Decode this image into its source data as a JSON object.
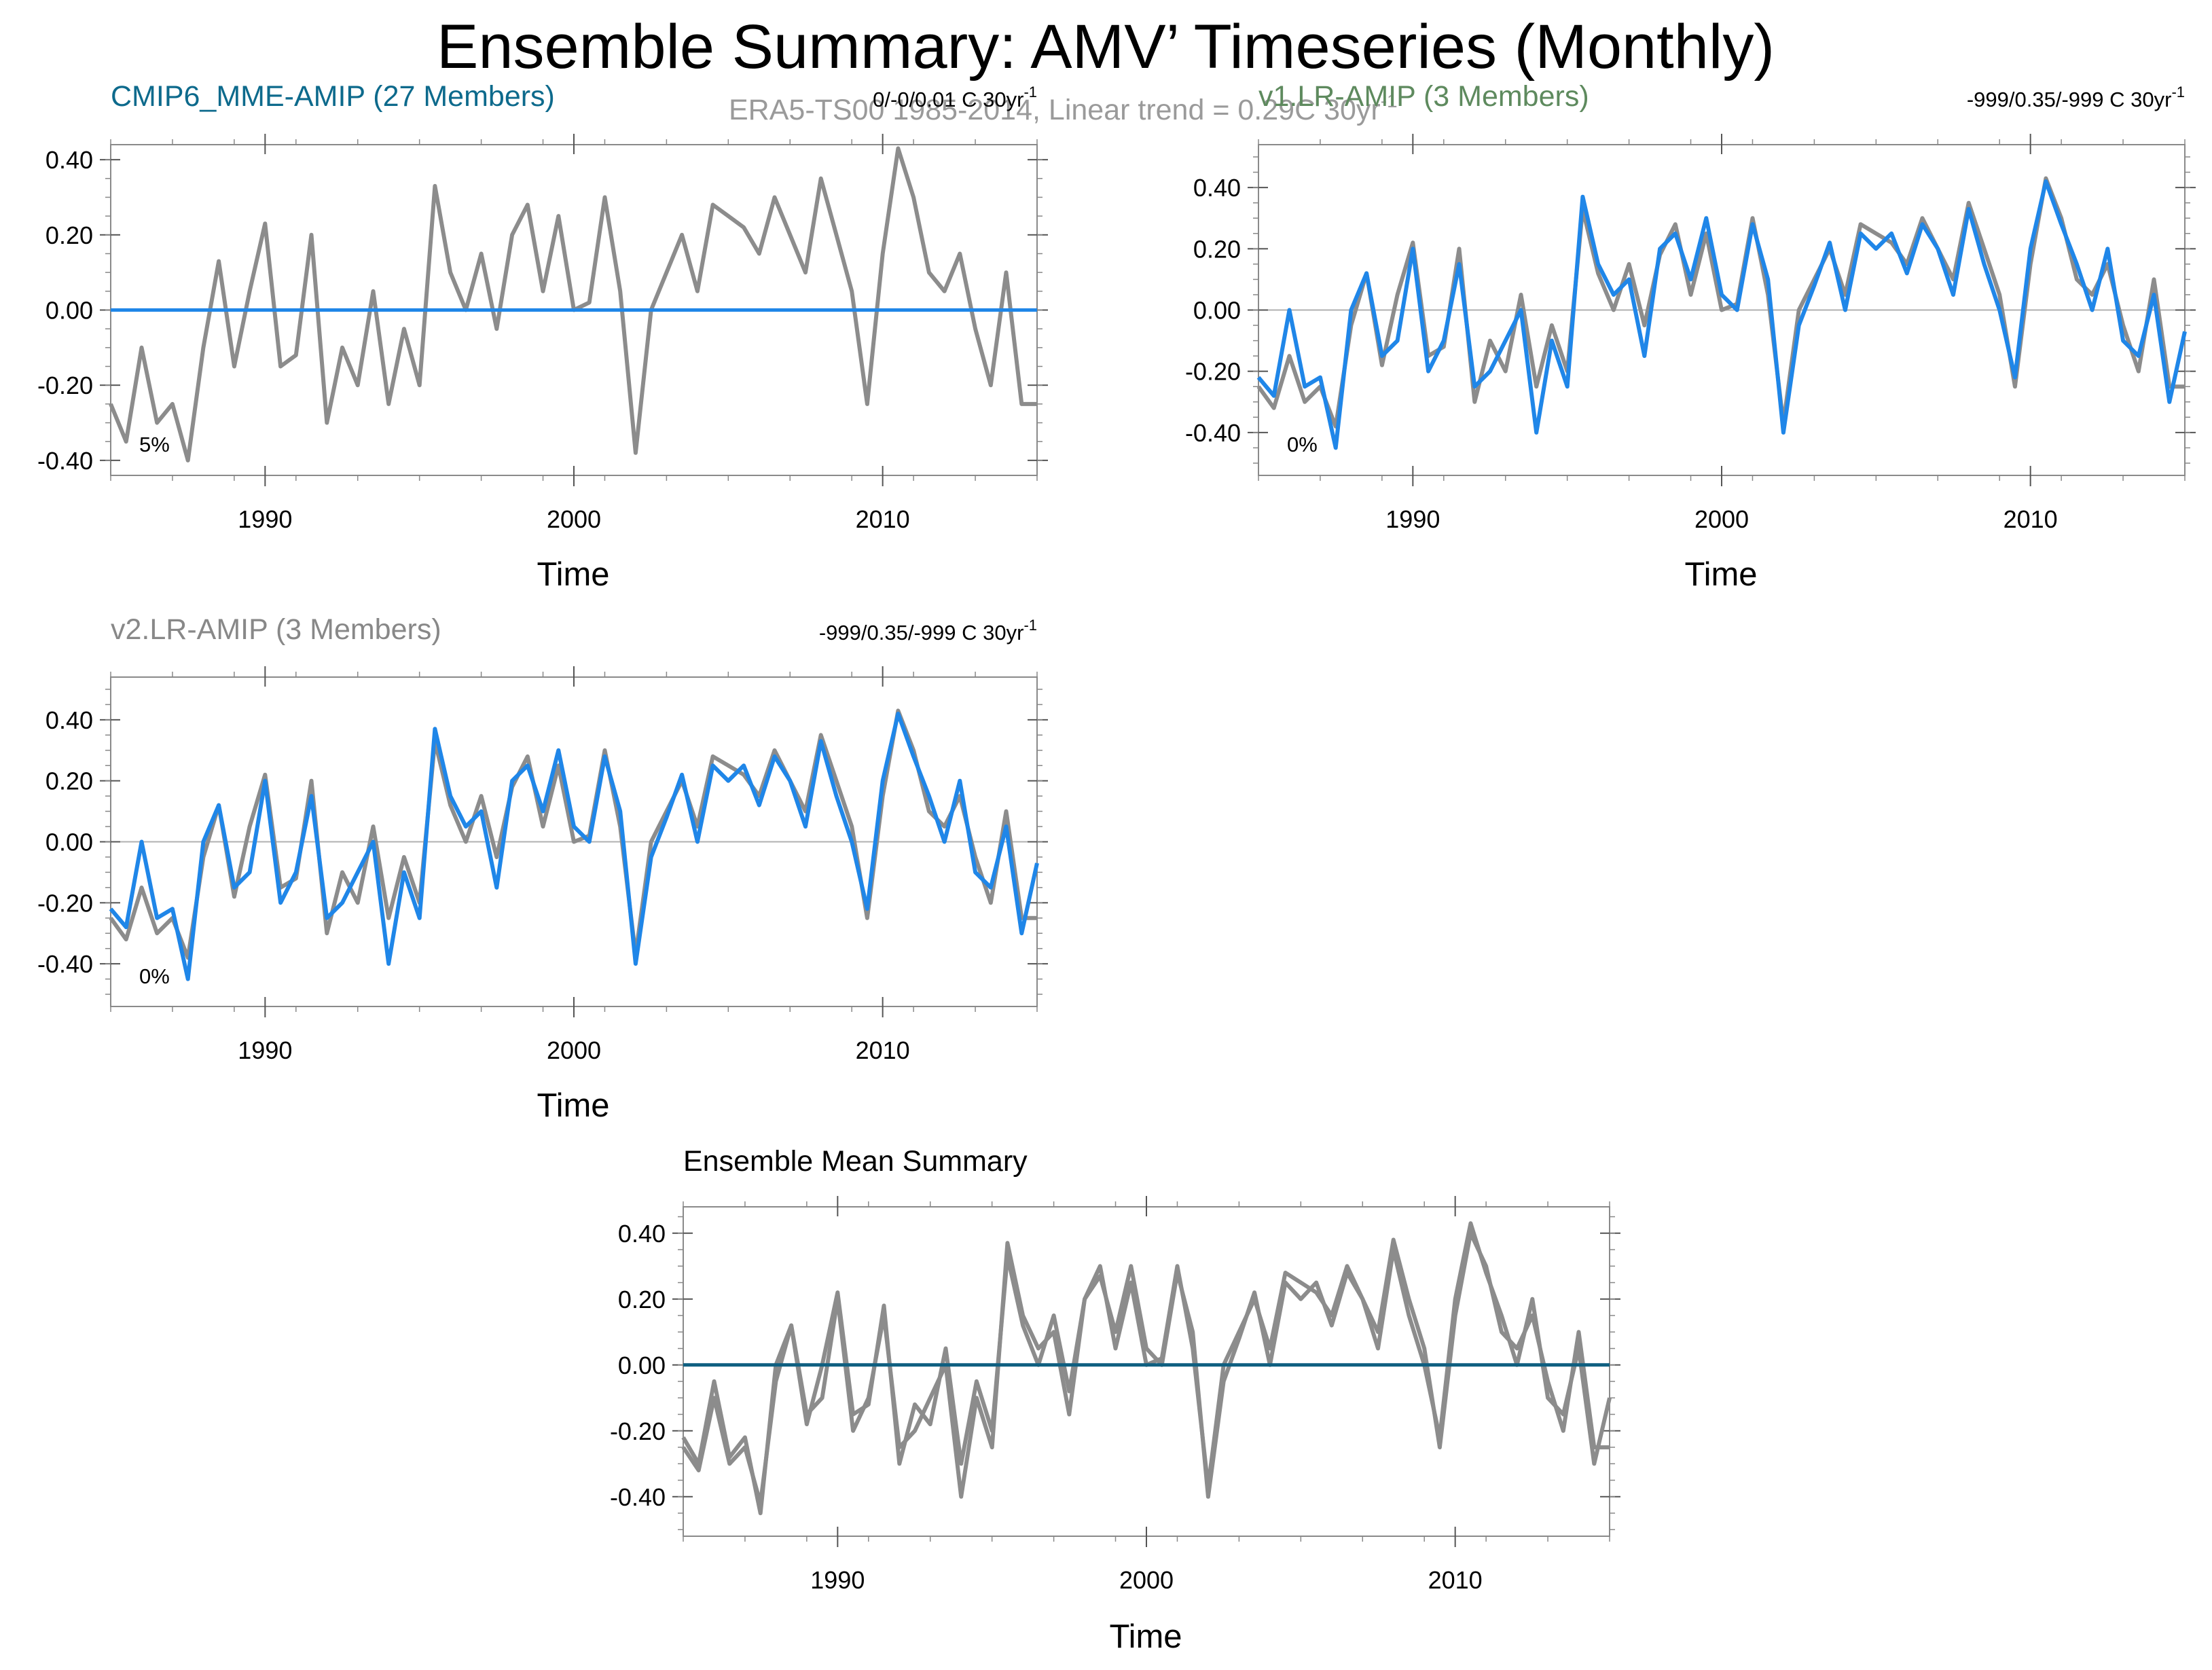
{
  "page": {
    "title": "Ensemble Summary: AMV’ Timeseries (Monthly)",
    "era_label": "ERA5-TS00 1985-2014, Linear trend = 0.29C 30yr",
    "era_label_sup": "-1"
  },
  "colors": {
    "obs": "#8c8c8c",
    "blue": "#1f86e8",
    "mme_mean": "#0e5f80",
    "frame": "#8a8a8a",
    "zero_line": "#b0b0b0",
    "cmip_title": "#0d6a8c",
    "v1_title": "#5e8a5e",
    "v2_title": "#888888"
  },
  "panels": [
    {
      "id": "cmip6",
      "title": "CMIP6_MME-AMIP (27 Members)",
      "trend": "0/-0/0.01 C 30yr",
      "trend_sup": "-1",
      "pct": "5%",
      "xlabel": "Time"
    },
    {
      "id": "v1",
      "title": "v1.LR-AMIP (3 Members)",
      "trend": "-999/0.35/-999 C 30yr",
      "trend_sup": "-1",
      "pct": "0%",
      "xlabel": "Time"
    },
    {
      "id": "v2",
      "title": "v2.LR-AMIP (3 Members)",
      "trend": "-999/0.35/-999 C 30yr",
      "trend_sup": "-1",
      "pct": "0%",
      "xlabel": "Time"
    },
    {
      "id": "summary",
      "title": "Ensemble Mean Summary",
      "xlabel": "Time"
    }
  ],
  "chart_data": [
    {
      "type": "line",
      "panel": "cmip6",
      "title": "CMIP6_MME-AMIP (27 Members)",
      "xlabel": "Time",
      "ylabel": "",
      "xlim": [
        1985,
        2015
      ],
      "ylim": [
        -0.44,
        0.44
      ],
      "xticks": [
        "1990",
        "2000",
        "2010"
      ],
      "yticks": [
        "0.40",
        "0.20",
        "0.00",
        "-0.20",
        "-0.40"
      ],
      "x": [
        1985,
        1985.5,
        1986,
        1986.5,
        1987,
        1987.5,
        1988,
        1988.5,
        1989,
        1989.5,
        1990,
        1990.5,
        1991,
        1991.5,
        1992,
        1992.5,
        1993,
        1993.5,
        1994,
        1994.5,
        1995,
        1995.5,
        1996,
        1996.5,
        1997,
        1997.5,
        1998,
        1998.5,
        1999,
        1999.5,
        2000,
        2000.5,
        2001,
        2001.5,
        2002,
        2002.5,
        2003,
        2003.5,
        2004,
        2004.5,
        2005,
        2005.5,
        2006,
        2006.5,
        2007,
        2007.5,
        2008,
        2008.5,
        2009,
        2009.5,
        2010,
        2010.5,
        2011,
        2011.5,
        2012,
        2012.5,
        2013,
        2013.5,
        2014,
        2014.5,
        2015
      ],
      "series": [
        {
          "name": "ERA5-TS00 observed",
          "values": [
            -0.25,
            -0.35,
            -0.1,
            -0.3,
            -0.25,
            -0.4,
            -0.1,
            0.13,
            -0.15,
            0.05,
            0.23,
            -0.15,
            -0.12,
            0.2,
            -0.3,
            -0.1,
            -0.2,
            0.05,
            -0.25,
            -0.05,
            -0.2,
            0.33,
            0.1,
            0.0,
            0.15,
            -0.05,
            0.2,
            0.28,
            0.05,
            0.25,
            0.0,
            0.02,
            0.3,
            0.05,
            -0.38,
            0.0,
            0.1,
            0.2,
            0.05,
            0.28,
            0.25,
            0.22,
            0.15,
            0.3,
            0.2,
            0.1,
            0.35,
            0.2,
            0.05,
            -0.25,
            0.15,
            0.43,
            0.3,
            0.1,
            0.05,
            0.15,
            -0.05,
            -0.2,
            0.1,
            -0.25,
            -0.25
          ]
        },
        {
          "name": "CMIP6 MME mean",
          "values": [
            0,
            0,
            0,
            0,
            0,
            0,
            0,
            0,
            0,
            0,
            0,
            0,
            0,
            0,
            0,
            0,
            0,
            0,
            0,
            0,
            0,
            0,
            0,
            0,
            0,
            0,
            0,
            0,
            0,
            0,
            0,
            0,
            0,
            0,
            0,
            0,
            0,
            0,
            0,
            0,
            0,
            0,
            0,
            0,
            0,
            0,
            0,
            0,
            0,
            0,
            0,
            0,
            0,
            0,
            0,
            0,
            0,
            0,
            0,
            0,
            0
          ]
        }
      ]
    },
    {
      "type": "line",
      "panel": "v1",
      "title": "v1.LR-AMIP (3 Members)",
      "xlabel": "Time",
      "ylabel": "",
      "xlim": [
        1985,
        2015
      ],
      "ylim": [
        -0.54,
        0.54
      ],
      "xticks": [
        "1990",
        "2000",
        "2010"
      ],
      "yticks": [
        "0.40",
        "0.20",
        "0.00",
        "-0.20",
        "-0.40"
      ],
      "x": [
        1985,
        1985.5,
        1986,
        1986.5,
        1987,
        1987.5,
        1988,
        1988.5,
        1989,
        1989.5,
        1990,
        1990.5,
        1991,
        1991.5,
        1992,
        1992.5,
        1993,
        1993.5,
        1994,
        1994.5,
        1995,
        1995.5,
        1996,
        1996.5,
        1997,
        1997.5,
        1998,
        1998.5,
        1999,
        1999.5,
        2000,
        2000.5,
        2001,
        2001.5,
        2002,
        2002.5,
        2003,
        2003.5,
        2004,
        2004.5,
        2005,
        2005.5,
        2006,
        2006.5,
        2007,
        2007.5,
        2008,
        2008.5,
        2009,
        2009.5,
        2010,
        2010.5,
        2011,
        2011.5,
        2012,
        2012.5,
        2013,
        2013.5,
        2014,
        2014.5,
        2015
      ],
      "series": [
        {
          "name": "ERA5-TS00 observed",
          "values": [
            -0.25,
            -0.32,
            -0.15,
            -0.3,
            -0.25,
            -0.38,
            -0.05,
            0.12,
            -0.18,
            0.05,
            0.22,
            -0.15,
            -0.12,
            0.2,
            -0.3,
            -0.1,
            -0.2,
            0.05,
            -0.25,
            -0.05,
            -0.2,
            0.33,
            0.12,
            0.0,
            0.15,
            -0.05,
            0.18,
            0.28,
            0.05,
            0.25,
            0.0,
            0.02,
            0.3,
            0.05,
            -0.37,
            0.0,
            0.1,
            0.2,
            0.05,
            0.28,
            0.25,
            0.22,
            0.15,
            0.3,
            0.2,
            0.1,
            0.35,
            0.2,
            0.05,
            -0.25,
            0.15,
            0.43,
            0.3,
            0.1,
            0.05,
            0.15,
            -0.05,
            -0.2,
            0.1,
            -0.25,
            -0.25
          ]
        },
        {
          "name": "v1.LR-AMIP ensemble mean",
          "values": [
            -0.22,
            -0.28,
            0.0,
            -0.25,
            -0.22,
            -0.45,
            0.0,
            0.12,
            -0.15,
            -0.1,
            0.2,
            -0.2,
            -0.1,
            0.15,
            -0.25,
            -0.2,
            -0.1,
            0.0,
            -0.4,
            -0.1,
            -0.25,
            0.37,
            0.15,
            0.05,
            0.1,
            -0.15,
            0.2,
            0.25,
            0.1,
            0.3,
            0.05,
            0.0,
            0.28,
            0.1,
            -0.4,
            -0.05,
            0.08,
            0.22,
            0.0,
            0.25,
            0.2,
            0.25,
            0.12,
            0.28,
            0.2,
            0.05,
            0.33,
            0.15,
            0.0,
            -0.22,
            0.2,
            0.42,
            0.28,
            0.15,
            0.0,
            0.2,
            -0.1,
            -0.15,
            0.05,
            -0.3,
            -0.07
          ]
        }
      ]
    },
    {
      "type": "line",
      "panel": "v2",
      "title": "v2.LR-AMIP (3 Members)",
      "xlabel": "Time",
      "ylabel": "",
      "xlim": [
        1985,
        2015
      ],
      "ylim": [
        -0.54,
        0.54
      ],
      "xticks": [
        "1990",
        "2000",
        "2010"
      ],
      "yticks": [
        "0.40",
        "0.20",
        "0.00",
        "-0.20",
        "-0.40"
      ],
      "x": [
        1985,
        1985.5,
        1986,
        1986.5,
        1987,
        1987.5,
        1988,
        1988.5,
        1989,
        1989.5,
        1990,
        1990.5,
        1991,
        1991.5,
        1992,
        1992.5,
        1993,
        1993.5,
        1994,
        1994.5,
        1995,
        1995.5,
        1996,
        1996.5,
        1997,
        1997.5,
        1998,
        1998.5,
        1999,
        1999.5,
        2000,
        2000.5,
        2001,
        2001.5,
        2002,
        2002.5,
        2003,
        2003.5,
        2004,
        2004.5,
        2005,
        2005.5,
        2006,
        2006.5,
        2007,
        2007.5,
        2008,
        2008.5,
        2009,
        2009.5,
        2010,
        2010.5,
        2011,
        2011.5,
        2012,
        2012.5,
        2013,
        2013.5,
        2014,
        2014.5,
        2015
      ],
      "series": [
        {
          "name": "ERA5-TS00 observed",
          "values": [
            -0.25,
            -0.32,
            -0.15,
            -0.3,
            -0.25,
            -0.38,
            -0.05,
            0.12,
            -0.18,
            0.05,
            0.22,
            -0.15,
            -0.12,
            0.2,
            -0.3,
            -0.1,
            -0.2,
            0.05,
            -0.25,
            -0.05,
            -0.2,
            0.33,
            0.12,
            0.0,
            0.15,
            -0.05,
            0.18,
            0.28,
            0.05,
            0.25,
            0.0,
            0.02,
            0.3,
            0.05,
            -0.37,
            0.0,
            0.1,
            0.2,
            0.05,
            0.28,
            0.25,
            0.22,
            0.15,
            0.3,
            0.2,
            0.1,
            0.35,
            0.2,
            0.05,
            -0.25,
            0.15,
            0.43,
            0.3,
            0.1,
            0.05,
            0.15,
            -0.05,
            -0.2,
            0.1,
            -0.25,
            -0.25
          ]
        },
        {
          "name": "v2.LR-AMIP ensemble mean",
          "values": [
            -0.22,
            -0.28,
            0.0,
            -0.25,
            -0.22,
            -0.45,
            0.0,
            0.12,
            -0.15,
            -0.1,
            0.2,
            -0.2,
            -0.1,
            0.15,
            -0.25,
            -0.2,
            -0.1,
            0.0,
            -0.4,
            -0.1,
            -0.25,
            0.37,
            0.15,
            0.05,
            0.1,
            -0.15,
            0.2,
            0.25,
            0.1,
            0.3,
            0.05,
            0.0,
            0.28,
            0.1,
            -0.4,
            -0.05,
            0.08,
            0.22,
            0.0,
            0.25,
            0.2,
            0.25,
            0.12,
            0.28,
            0.2,
            0.05,
            0.33,
            0.15,
            0.0,
            -0.22,
            0.2,
            0.42,
            0.28,
            0.15,
            0.0,
            0.2,
            -0.1,
            -0.15,
            0.05,
            -0.3,
            -0.07
          ]
        }
      ]
    },
    {
      "type": "line",
      "panel": "summary",
      "title": "Ensemble Mean Summary",
      "xlabel": "Time",
      "ylabel": "",
      "xlim": [
        1985,
        2015
      ],
      "ylim": [
        -0.52,
        0.48
      ],
      "xticks": [
        "1990",
        "2000",
        "2010"
      ],
      "yticks": [
        "0.40",
        "0.20",
        "0.00",
        "-0.20",
        "-0.40"
      ],
      "x": [
        1985,
        1985.5,
        1986,
        1986.5,
        1987,
        1987.5,
        1988,
        1988.5,
        1989,
        1989.5,
        1990,
        1990.5,
        1991,
        1991.5,
        1992,
        1992.5,
        1993,
        1993.5,
        1994,
        1994.5,
        1995,
        1995.5,
        1996,
        1996.5,
        1997,
        1997.5,
        1998,
        1998.5,
        1999,
        1999.5,
        2000,
        2000.5,
        2001,
        2001.5,
        2002,
        2002.5,
        2003,
        2003.5,
        2004,
        2004.5,
        2005,
        2005.5,
        2006,
        2006.5,
        2007,
        2007.5,
        2008,
        2008.5,
        2009,
        2009.5,
        2010,
        2010.5,
        2011,
        2011.5,
        2012,
        2012.5,
        2013,
        2013.5,
        2014,
        2014.5,
        2015
      ],
      "series": [
        {
          "name": "v1.LR-AMIP ensemble mean",
          "values": [
            -0.22,
            -0.3,
            -0.05,
            -0.28,
            -0.22,
            -0.45,
            0.0,
            0.12,
            -0.15,
            -0.1,
            0.2,
            -0.2,
            -0.1,
            0.15,
            -0.25,
            -0.2,
            -0.1,
            0.0,
            -0.4,
            -0.1,
            -0.25,
            0.37,
            0.15,
            0.05,
            0.1,
            -0.15,
            0.2,
            0.27,
            0.1,
            0.3,
            0.05,
            0.0,
            0.28,
            0.1,
            -0.4,
            -0.05,
            0.08,
            0.22,
            0.0,
            0.25,
            0.2,
            0.25,
            0.12,
            0.28,
            0.2,
            0.05,
            0.35,
            0.15,
            0.0,
            -0.22,
            0.2,
            0.43,
            0.28,
            0.15,
            0.0,
            0.2,
            -0.1,
            -0.15,
            0.05,
            -0.3,
            -0.1
          ]
        },
        {
          "name": "v2.LR-AMIP ensemble mean",
          "values": [
            -0.25,
            -0.32,
            -0.1,
            -0.3,
            -0.25,
            -0.42,
            -0.05,
            0.12,
            -0.18,
            0.0,
            0.22,
            -0.15,
            -0.12,
            0.18,
            -0.3,
            -0.12,
            -0.18,
            0.05,
            -0.3,
            -0.05,
            -0.2,
            0.33,
            0.12,
            0.0,
            0.15,
            -0.08,
            0.2,
            0.3,
            0.05,
            0.25,
            0.0,
            0.02,
            0.3,
            0.05,
            -0.37,
            0.0,
            0.1,
            0.2,
            0.05,
            0.28,
            0.25,
            0.22,
            0.15,
            0.3,
            0.2,
            0.1,
            0.38,
            0.2,
            0.05,
            -0.25,
            0.15,
            0.4,
            0.3,
            0.1,
            0.05,
            0.15,
            -0.05,
            -0.2,
            0.1,
            -0.25,
            -0.25
          ]
        },
        {
          "name": "CMIP6 MME mean",
          "values": [
            0,
            0,
            0,
            0,
            0,
            0,
            0,
            0,
            0,
            0,
            0,
            0,
            0,
            0,
            0,
            0,
            0,
            0,
            0,
            0,
            0,
            0,
            0,
            0,
            0,
            0,
            0,
            0,
            0,
            0,
            0,
            0,
            0,
            0,
            0,
            0,
            0,
            0,
            0,
            0,
            0,
            0,
            0,
            0,
            0,
            0,
            0,
            0,
            0,
            0,
            0,
            0,
            0,
            0,
            0,
            0,
            0,
            0,
            0,
            0,
            0
          ]
        }
      ]
    }
  ]
}
